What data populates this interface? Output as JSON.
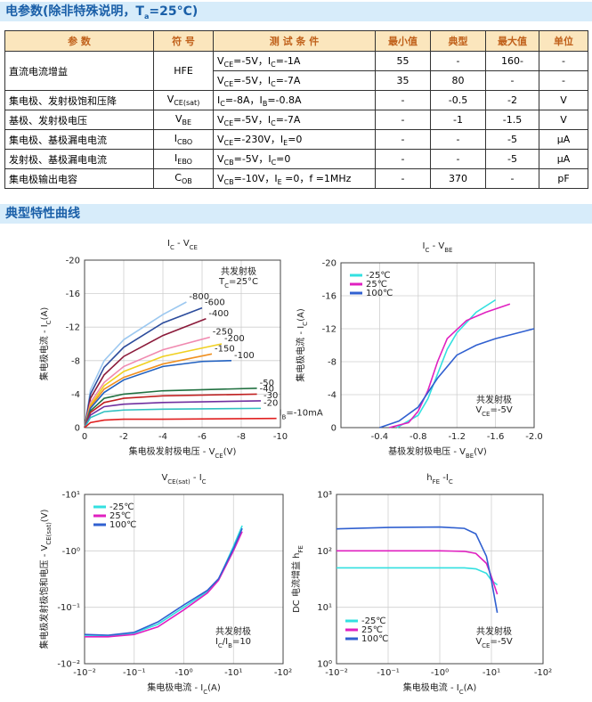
{
  "header": {
    "title": [
      "电参数(除非特殊说明，T",
      {
        "sub": "a"
      },
      "=25°C)"
    ]
  },
  "table": {
    "header": [
      "参 数",
      "符 号",
      "测 试 条 件",
      "最小值",
      "典型",
      "最大值",
      "单位"
    ],
    "rows": [
      [
        "直流电流增益",
        "HFE",
        [
          "V",
          {
            "sub": "CE"
          },
          "=-5V，I",
          {
            "sub": "C"
          },
          "=-1A"
        ],
        "55",
        "-",
        "160-",
        "-"
      ],
      [
        [
          "V",
          {
            "sub": "CE"
          },
          "=-5V，I",
          {
            "sub": "C"
          },
          "=-7A"
        ],
        "35",
        "80",
        "-",
        "-"
      ],
      [
        "集电极、发射极饱和压降",
        [
          "V",
          {
            "sub": "CE(sat)"
          }
        ],
        [
          "I",
          {
            "sub": "C"
          },
          "=-8A，I",
          {
            "sub": "B"
          },
          "=-0.8A"
        ],
        "-",
        "-0.5",
        "-2",
        "V"
      ],
      [
        "基极、发射极电压",
        [
          "V",
          {
            "sub": "BE"
          }
        ],
        [
          "V",
          {
            "sub": "CE"
          },
          "=-5V，I",
          {
            "sub": "C"
          },
          "=-7A"
        ],
        "-",
        "-1",
        "-1.5",
        "V"
      ],
      [
        "集电极、基极漏电电流",
        [
          "I",
          {
            "sub": "CBO"
          }
        ],
        [
          "V",
          {
            "sub": "CE"
          },
          "=-230V，I",
          {
            "sub": "E"
          },
          "=0"
        ],
        "-",
        "-",
        "-5",
        "μA"
      ],
      [
        "发射极、基极漏电电流",
        [
          "I",
          {
            "sub": "EBO"
          }
        ],
        [
          "V",
          {
            "sub": "CB"
          },
          "=-5V，I",
          {
            "sub": "C"
          },
          "=0"
        ],
        "-",
        "-",
        "-5",
        "μA"
      ],
      [
        "集电极输出电容",
        [
          "C",
          {
            "sub": "OB"
          }
        ],
        [
          "V",
          {
            "sub": "CB"
          },
          "=-10V，I",
          {
            "sub": "E"
          },
          " =0，f =1MHz"
        ],
        "-",
        "370",
        "-",
        "pF"
      ]
    ]
  },
  "section2": {
    "title": "典型特性曲线"
  },
  "chart_data": [
    {
      "type": "line",
      "title": [
        "I",
        {
          "sub": "C"
        },
        " - V",
        {
          "sub": "CE"
        }
      ],
      "xlabel": [
        "集电极发射极电压 - V",
        {
          "sub": "CE"
        },
        "(V)"
      ],
      "ylabel": [
        "集电极电流 - I",
        {
          "sub": "C"
        },
        "(A)"
      ],
      "note": [
        "共发射极",
        [
          "T",
          {
            "sub": "C"
          },
          "=25°C"
        ]
      ],
      "xlim": [
        0,
        -10
      ],
      "ylim": [
        0,
        -20
      ],
      "xticks": [
        0,
        -2,
        -4,
        -6,
        -8,
        -10
      ],
      "yticks": [
        -20,
        -16,
        -12,
        -8,
        -4,
        0
      ],
      "grid": true,
      "curve_labels": true,
      "series": [
        {
          "name": "-800",
          "color": "#9cc8f0",
          "x": [
            0,
            -0.3,
            -1,
            -2,
            -4,
            -5.2
          ],
          "values": [
            0,
            -4.5,
            -8,
            -10.5,
            -13.5,
            -15
          ]
        },
        {
          "name": "-600",
          "color": "#2c4c9c",
          "x": [
            0,
            -0.3,
            -1,
            -2,
            -4,
            -6
          ],
          "values": [
            0,
            -4,
            -7.2,
            -9.6,
            -12.5,
            -14.3
          ]
        },
        {
          "name": "-400",
          "color": "#8b1a3a",
          "x": [
            0,
            -0.3,
            -1,
            -2,
            -4,
            -6.2
          ],
          "values": [
            0,
            -3.5,
            -6.3,
            -8.5,
            -11,
            -13
          ]
        },
        {
          "name": "-250",
          "color": "#f08ab0",
          "x": [
            0,
            -0.3,
            -1,
            -2,
            -4,
            -6.4
          ],
          "values": [
            0,
            -3,
            -5.4,
            -7.3,
            -9.3,
            -10.8
          ]
        },
        {
          "name": "-200",
          "color": "#f0d020",
          "x": [
            0,
            -0.3,
            -1,
            -2,
            -4,
            -7
          ],
          "values": [
            0,
            -2.7,
            -5,
            -6.7,
            -8.5,
            -10
          ]
        },
        {
          "name": "-150",
          "color": "#f09020",
          "x": [
            0,
            -0.3,
            -1,
            -2,
            -4,
            -6.5
          ],
          "values": [
            0,
            -2.5,
            -4.6,
            -6,
            -7.6,
            -8.8
          ]
        },
        {
          "name": "-100",
          "color": "#2060c0",
          "x": [
            0,
            -0.3,
            -1,
            -2,
            -4,
            -6,
            -7.5
          ],
          "values": [
            0,
            -2.3,
            -4.2,
            -5.7,
            -7.3,
            -7.9,
            -8
          ]
        },
        {
          "name": "-50",
          "color": "#207040",
          "x": [
            0,
            -0.3,
            -1,
            -2,
            -4,
            -8.8
          ],
          "values": [
            0,
            -2,
            -3.5,
            -4,
            -4.4,
            -4.7
          ]
        },
        {
          "name": "-40",
          "color": "#c02020",
          "x": [
            0,
            -0.3,
            -1,
            -2,
            -4,
            -8.8
          ],
          "values": [
            0,
            -1.8,
            -3,
            -3.5,
            -3.8,
            -4
          ]
        },
        {
          "name": "-30",
          "color": "#7030a0",
          "x": [
            0,
            -0.3,
            -1,
            -2,
            -4,
            -9
          ],
          "values": [
            0,
            -1.5,
            -2.5,
            -2.8,
            -3,
            -3.2
          ]
        },
        {
          "name": "-20",
          "color": "#30c0c0",
          "x": [
            0,
            -0.3,
            -1,
            -2,
            -4,
            -9
          ],
          "values": [
            0,
            -1.2,
            -1.9,
            -2.1,
            -2.2,
            -2.3
          ]
        },
        {
          "name": [
            "I",
            {
              "sub": "B"
            },
            "=-10mA"
          ],
          "color": "#e02020",
          "x": [
            0,
            -0.3,
            -1,
            -2,
            -4,
            -9.8
          ],
          "values": [
            0,
            -0.6,
            -0.9,
            -1,
            -1,
            -1.1
          ]
        }
      ]
    },
    {
      "type": "line",
      "title": [
        "I",
        {
          "sub": "C"
        },
        " - V",
        {
          "sub": "BE"
        }
      ],
      "xlabel": [
        "基极发射极电压 - V",
        {
          "sub": "BE"
        },
        "(V)"
      ],
      "ylabel": [
        "集电极电流 - I",
        {
          "sub": "C"
        },
        "(A)"
      ],
      "note": [
        "共发射极",
        [
          "V",
          {
            "sub": "CE"
          },
          "=-5V"
        ]
      ],
      "xlim": [
        0,
        -2.0
      ],
      "ylim": [
        0,
        -20
      ],
      "xticks": [
        -0.4,
        -0.8,
        -1.2,
        -1.6,
        {
          "value": -2.0,
          "label": "-2.0"
        }
      ],
      "yticks": [
        -20,
        -16,
        -12,
        -8,
        -4,
        0
      ],
      "grid": true,
      "legend": "upper left",
      "series": [
        {
          "name": "-25℃",
          "color": "#33e0e0",
          "x": [
            -0.58,
            -0.8,
            -0.9,
            -1.0,
            -1.1,
            -1.2,
            -1.4,
            -1.6
          ],
          "values": [
            0,
            -1.5,
            -3.5,
            -6.5,
            -9.5,
            -11.5,
            -14,
            -15.5
          ]
        },
        {
          "name": "25℃",
          "color": "#e020c0",
          "x": [
            -0.5,
            -0.7,
            -0.8,
            -0.9,
            -1.0,
            -1.1,
            -1.3,
            -1.5,
            -1.75
          ],
          "values": [
            0,
            -0.6,
            -2,
            -4.5,
            -8,
            -10.8,
            -13,
            -14,
            -15
          ]
        },
        {
          "name": "100℃",
          "color": "#3060d0",
          "x": [
            -0.4,
            -0.6,
            -0.8,
            -1.0,
            -1.2,
            -1.4,
            -1.6,
            -2.0
          ],
          "values": [
            0,
            -0.8,
            -2.5,
            -6,
            -8.8,
            -10,
            -10.8,
            -12
          ]
        }
      ]
    },
    {
      "type": "line",
      "title": [
        "V",
        {
          "sub": "CE(sat)"
        },
        " - I",
        {
          "sub": "C"
        }
      ],
      "xlabel": [
        "集电极电流 - I",
        {
          "sub": "C"
        },
        "(A)"
      ],
      "ylabel": [
        "集电极发射极饱和电压 - V",
        {
          "sub": "CE(sat)"
        },
        "(V)"
      ],
      "note": [
        "共发射极",
        [
          "I",
          {
            "sub": "C"
          },
          "/I",
          {
            "sub": "B"
          },
          "=10"
        ]
      ],
      "xscale": "log",
      "yscale": "log",
      "xlim": [
        -0.01,
        -100
      ],
      "ylim": [
        -0.01,
        -10
      ],
      "xticks": [
        {
          "value": -0.01,
          "label": "-10⁻²"
        },
        {
          "value": -0.1,
          "label": "-10⁻¹"
        },
        {
          "value": -1,
          "label": "-10⁰"
        },
        {
          "value": -10,
          "label": "-10¹"
        },
        {
          "value": -100,
          "label": "-10²"
        }
      ],
      "yticks": [
        {
          "value": -0.01,
          "label": "-10⁻²"
        },
        {
          "value": -0.1,
          "label": "-10⁻¹"
        },
        {
          "value": -1,
          "label": "-10⁰"
        },
        {
          "value": -10,
          "label": "-10¹"
        }
      ],
      "grid": true,
      "legend": "upper left",
      "series": [
        {
          "name": "-25℃",
          "color": "#33e0e0",
          "x": [
            -0.01,
            -0.03,
            -0.1,
            -0.3,
            -1,
            -3,
            -5,
            -10,
            -15
          ],
          "values": [
            -0.031,
            -0.031,
            -0.035,
            -0.05,
            -0.1,
            -0.19,
            -0.31,
            -1.2,
            -2.8
          ]
        },
        {
          "name": "25℃",
          "color": "#e020c0",
          "x": [
            -0.01,
            -0.03,
            -0.1,
            -0.3,
            -1,
            -3,
            -5,
            -10,
            -15
          ],
          "values": [
            -0.03,
            -0.03,
            -0.033,
            -0.045,
            -0.09,
            -0.18,
            -0.3,
            -1,
            -2.2
          ]
        },
        {
          "name": "100℃",
          "color": "#3060d0",
          "x": [
            -0.01,
            -0.03,
            -0.1,
            -0.3,
            -1,
            -3,
            -5,
            -10,
            -15
          ],
          "values": [
            -0.033,
            -0.032,
            -0.036,
            -0.055,
            -0.11,
            -0.2,
            -0.32,
            -1.1,
            -2.5
          ]
        }
      ]
    },
    {
      "type": "line",
      "title": [
        "h",
        {
          "sub": "FE"
        },
        " -I",
        {
          "sub": "C"
        }
      ],
      "xlabel": [
        "集电极电流 - I",
        {
          "sub": "C"
        },
        "(A)"
      ],
      "ylabel": [
        "DC 电流增益 h",
        {
          "sub": "FE"
        }
      ],
      "note": [
        "共发射极",
        [
          "V",
          {
            "sub": "CE"
          },
          "=-5V"
        ]
      ],
      "xscale": "log",
      "yscale": "log",
      "xlim": [
        -0.01,
        -100
      ],
      "ylim": [
        1,
        1000
      ],
      "xticks": [
        {
          "value": -0.01,
          "label": "-10⁻²"
        },
        {
          "value": -0.1,
          "label": "-10⁻¹"
        },
        {
          "value": -1,
          "label": "-10⁰"
        },
        {
          "value": -10,
          "label": "-10¹"
        },
        {
          "value": -100,
          "label": "-10²"
        }
      ],
      "yticks": [
        {
          "value": 1,
          "label": "10⁰"
        },
        {
          "value": 10,
          "label": "10¹"
        },
        {
          "value": 100,
          "label": "10²"
        },
        {
          "value": 1000,
          "label": "10³"
        }
      ],
      "grid": true,
      "legend": "lower left",
      "series": [
        {
          "name": "-25℃",
          "color": "#33e0e0",
          "x": [
            -0.01,
            -0.1,
            -1,
            -3,
            -5,
            -8,
            -10,
            -13
          ],
          "values": [
            50,
            50,
            50,
            50,
            48,
            40,
            30,
            25
          ]
        },
        {
          "name": "25℃",
          "color": "#e020c0",
          "x": [
            -0.01,
            -0.1,
            -1,
            -3,
            -5,
            -8,
            -10,
            -13
          ],
          "values": [
            100,
            100,
            100,
            98,
            90,
            60,
            35,
            17
          ]
        },
        {
          "name": "100℃",
          "color": "#3060d0",
          "x": [
            -0.01,
            -0.1,
            -1,
            -3,
            -5,
            -8,
            -10,
            -13
          ],
          "values": [
            245,
            260,
            265,
            250,
            200,
            80,
            30,
            8
          ]
        }
      ]
    }
  ]
}
